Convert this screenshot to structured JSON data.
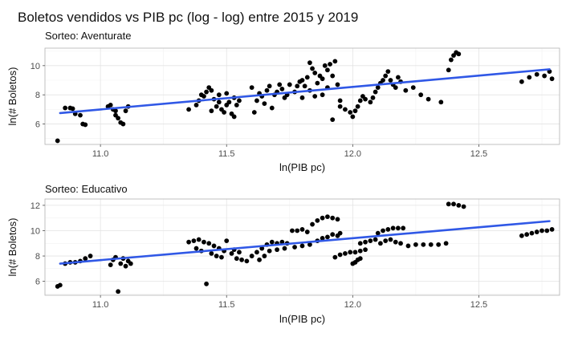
{
  "chart_title": "Boletos vendidos vs PIB pc (log - log) entre 2015 y 2019",
  "colors": {
    "points": "#000000",
    "trend": "#3058e6",
    "grid": "#e3e3e3",
    "border": "#b3b3b3"
  },
  "chart_data": [
    {
      "type": "scatter",
      "subtitle": "Sorteo: Aventurate",
      "xlabel": "ln(PIB pc)",
      "ylabel": "ln(# Boletos)",
      "xlim": [
        10.78,
        12.82
      ],
      "ylim": [
        4.6,
        11.2
      ],
      "xticks": [
        11.0,
        11.5,
        12.0,
        12.5
      ],
      "xtick_labels": [
        "11.0",
        "11.5",
        "12.0",
        "12.5"
      ],
      "yticks": [
        6,
        8,
        10
      ],
      "ytick_labels": [
        "6",
        "8",
        "10"
      ],
      "grid": true,
      "trend_line": {
        "x": [
          10.84,
          12.78
        ],
        "y": [
          6.75,
          9.75
        ]
      },
      "points": [
        [
          10.83,
          4.85
        ],
        [
          10.86,
          7.1
        ],
        [
          10.88,
          7.1
        ],
        [
          10.89,
          7.05
        ],
        [
          10.9,
          6.7
        ],
        [
          10.92,
          6.6
        ],
        [
          10.93,
          6.0
        ],
        [
          10.94,
          5.95
        ],
        [
          11.03,
          7.2
        ],
        [
          11.04,
          7.3
        ],
        [
          11.05,
          7.0
        ],
        [
          11.06,
          6.9
        ],
        [
          11.06,
          6.6
        ],
        [
          11.07,
          6.4
        ],
        [
          11.08,
          6.1
        ],
        [
          11.09,
          6.0
        ],
        [
          11.1,
          6.9
        ],
        [
          11.11,
          7.2
        ],
        [
          11.35,
          7.0
        ],
        [
          11.38,
          7.3
        ],
        [
          11.39,
          7.6
        ],
        [
          11.4,
          8.0
        ],
        [
          11.41,
          7.9
        ],
        [
          11.42,
          8.2
        ],
        [
          11.43,
          8.5
        ],
        [
          11.44,
          8.3
        ],
        [
          11.45,
          7.7
        ],
        [
          11.46,
          7.2
        ],
        [
          11.47,
          8.0
        ],
        [
          11.48,
          7.0
        ],
        [
          11.49,
          6.8
        ],
        [
          11.5,
          8.1
        ],
        [
          11.51,
          7.5
        ],
        [
          11.52,
          6.7
        ],
        [
          11.53,
          7.8
        ],
        [
          11.54,
          7.3
        ],
        [
          11.55,
          7.6
        ],
        [
          11.44,
          6.9
        ],
        [
          11.47,
          7.5
        ],
        [
          11.5,
          7.3
        ],
        [
          11.53,
          6.5
        ],
        [
          11.6,
          8.5
        ],
        [
          11.61,
          6.8
        ],
        [
          11.62,
          7.6
        ],
        [
          11.63,
          8.1
        ],
        [
          11.64,
          7.9
        ],
        [
          11.65,
          7.4
        ],
        [
          11.66,
          8.3
        ],
        [
          11.67,
          8.6
        ],
        [
          11.68,
          7.1
        ],
        [
          11.69,
          8.0
        ],
        [
          11.7,
          8.2
        ],
        [
          11.71,
          8.7
        ],
        [
          11.72,
          8.4
        ],
        [
          11.73,
          7.8
        ],
        [
          11.74,
          8.0
        ],
        [
          11.75,
          8.7
        ],
        [
          11.77,
          8.2
        ],
        [
          11.78,
          8.6
        ],
        [
          11.79,
          8.9
        ],
        [
          11.8,
          9.0
        ],
        [
          11.81,
          8.6
        ],
        [
          11.82,
          9.2
        ],
        [
          11.83,
          10.2
        ],
        [
          11.84,
          9.8
        ],
        [
          11.85,
          9.5
        ],
        [
          11.86,
          8.8
        ],
        [
          11.87,
          9.3
        ],
        [
          11.88,
          9.1
        ],
        [
          11.89,
          10.0
        ],
        [
          11.9,
          9.7
        ],
        [
          11.91,
          10.1
        ],
        [
          11.92,
          9.3
        ],
        [
          11.93,
          10.3
        ],
        [
          11.94,
          8.7
        ],
        [
          11.8,
          7.8
        ],
        [
          11.83,
          8.3
        ],
        [
          11.85,
          7.9
        ],
        [
          11.88,
          8.0
        ],
        [
          11.9,
          8.5
        ],
        [
          11.92,
          6.3
        ],
        [
          11.95,
          7.2
        ],
        [
          11.95,
          7.6
        ],
        [
          11.97,
          7.0
        ],
        [
          11.99,
          6.8
        ],
        [
          12.0,
          6.5
        ],
        [
          12.01,
          6.9
        ],
        [
          12.02,
          7.2
        ],
        [
          12.03,
          7.6
        ],
        [
          12.04,
          7.9
        ],
        [
          12.05,
          7.7
        ],
        [
          12.07,
          7.5
        ],
        [
          12.08,
          7.8
        ],
        [
          12.09,
          8.2
        ],
        [
          12.1,
          8.5
        ],
        [
          12.11,
          8.8
        ],
        [
          12.12,
          9.0
        ],
        [
          12.13,
          9.3
        ],
        [
          12.14,
          9.6
        ],
        [
          12.15,
          9.0
        ],
        [
          12.16,
          8.7
        ],
        [
          12.17,
          8.5
        ],
        [
          12.18,
          9.2
        ],
        [
          12.19,
          8.9
        ],
        [
          12.21,
          8.3
        ],
        [
          12.24,
          8.5
        ],
        [
          12.27,
          8.0
        ],
        [
          12.3,
          7.7
        ],
        [
          12.35,
          7.5
        ],
        [
          12.38,
          9.7
        ],
        [
          12.39,
          10.4
        ],
        [
          12.4,
          10.7
        ],
        [
          12.41,
          10.9
        ],
        [
          12.42,
          10.8
        ],
        [
          12.67,
          8.9
        ],
        [
          12.7,
          9.2
        ],
        [
          12.73,
          9.4
        ],
        [
          12.76,
          9.3
        ],
        [
          12.78,
          9.6
        ],
        [
          12.79,
          9.1
        ]
      ]
    },
    {
      "type": "scatter",
      "subtitle": "Sorteo: Educativo",
      "xlabel": "ln(PIB pc)",
      "ylabel": "ln(# Boletos)",
      "xlim": [
        10.78,
        12.82
      ],
      "ylim": [
        4.9,
        12.5
      ],
      "xticks": [
        11.0,
        11.5,
        12.0,
        12.5
      ],
      "xtick_labels": [
        "11.0",
        "11.5",
        "12.0",
        "12.5"
      ],
      "yticks": [
        6,
        8,
        10,
        12
      ],
      "ytick_labels": [
        "6",
        "8",
        "10",
        "12"
      ],
      "grid": true,
      "trend_line": {
        "x": [
          10.84,
          12.78
        ],
        "y": [
          7.4,
          10.75
        ]
      },
      "points": [
        [
          10.83,
          5.6
        ],
        [
          10.84,
          5.7
        ],
        [
          10.86,
          7.4
        ],
        [
          10.88,
          7.5
        ],
        [
          10.9,
          7.5
        ],
        [
          10.92,
          7.6
        ],
        [
          10.94,
          7.8
        ],
        [
          10.96,
          8.0
        ],
        [
          11.04,
          7.3
        ],
        [
          11.05,
          7.7
        ],
        [
          11.06,
          7.9
        ],
        [
          11.07,
          5.2
        ],
        [
          11.08,
          7.4
        ],
        [
          11.09,
          7.8
        ],
        [
          11.1,
          7.2
        ],
        [
          11.11,
          7.6
        ],
        [
          11.12,
          7.4
        ],
        [
          11.35,
          9.1
        ],
        [
          11.37,
          9.2
        ],
        [
          11.39,
          9.3
        ],
        [
          11.41,
          9.1
        ],
        [
          11.43,
          9.0
        ],
        [
          11.45,
          8.8
        ],
        [
          11.47,
          8.6
        ],
        [
          11.49,
          8.4
        ],
        [
          11.38,
          8.6
        ],
        [
          11.4,
          8.4
        ],
        [
          11.42,
          5.8
        ],
        [
          11.44,
          8.2
        ],
        [
          11.46,
          8.0
        ],
        [
          11.48,
          7.9
        ],
        [
          11.5,
          9.2
        ],
        [
          11.52,
          8.2
        ],
        [
          11.54,
          7.8
        ],
        [
          11.56,
          7.7
        ],
        [
          11.58,
          7.6
        ],
        [
          11.53,
          8.5
        ],
        [
          11.55,
          8.3
        ],
        [
          11.6,
          8.0
        ],
        [
          11.62,
          8.3
        ],
        [
          11.64,
          8.6
        ],
        [
          11.66,
          8.9
        ],
        [
          11.68,
          9.1
        ],
        [
          11.7,
          9.0
        ],
        [
          11.72,
          9.1
        ],
        [
          11.74,
          9.0
        ],
        [
          11.63,
          7.7
        ],
        [
          11.65,
          8.0
        ],
        [
          11.67,
          8.4
        ],
        [
          11.7,
          8.5
        ],
        [
          11.73,
          8.6
        ],
        [
          11.76,
          10.0
        ],
        [
          11.78,
          10.0
        ],
        [
          11.8,
          10.1
        ],
        [
          11.82,
          9.9
        ],
        [
          11.77,
          8.7
        ],
        [
          11.8,
          8.8
        ],
        [
          11.83,
          8.9
        ],
        [
          11.84,
          10.5
        ],
        [
          11.86,
          10.8
        ],
        [
          11.88,
          11.0
        ],
        [
          11.9,
          11.1
        ],
        [
          11.92,
          11.0
        ],
        [
          11.94,
          10.9
        ],
        [
          11.86,
          9.2
        ],
        [
          11.88,
          9.4
        ],
        [
          11.9,
          9.5
        ],
        [
          11.92,
          9.7
        ],
        [
          11.94,
          9.6
        ],
        [
          11.95,
          9.8
        ],
        [
          11.93,
          7.9
        ],
        [
          11.95,
          8.1
        ],
        [
          11.97,
          8.2
        ],
        [
          11.99,
          8.3
        ],
        [
          12.01,
          8.3
        ],
        [
          12.03,
          8.4
        ],
        [
          12.05,
          8.5
        ],
        [
          12.0,
          7.4
        ],
        [
          12.01,
          7.5
        ],
        [
          12.02,
          7.7
        ],
        [
          12.03,
          7.8
        ],
        [
          12.03,
          9.0
        ],
        [
          12.05,
          9.1
        ],
        [
          12.07,
          9.2
        ],
        [
          12.09,
          9.3
        ],
        [
          12.11,
          9.0
        ],
        [
          12.13,
          9.2
        ],
        [
          12.15,
          9.3
        ],
        [
          12.17,
          9.1
        ],
        [
          12.19,
          9.0
        ],
        [
          12.1,
          9.8
        ],
        [
          12.12,
          10.0
        ],
        [
          12.14,
          10.1
        ],
        [
          12.16,
          10.2
        ],
        [
          12.18,
          10.2
        ],
        [
          12.2,
          10.2
        ],
        [
          12.22,
          8.8
        ],
        [
          12.25,
          8.9
        ],
        [
          12.28,
          8.9
        ],
        [
          12.31,
          8.9
        ],
        [
          12.34,
          8.9
        ],
        [
          12.37,
          9.0
        ],
        [
          12.38,
          12.1
        ],
        [
          12.4,
          12.1
        ],
        [
          12.42,
          12.0
        ],
        [
          12.44,
          11.9
        ],
        [
          12.67,
          9.6
        ],
        [
          12.69,
          9.7
        ],
        [
          12.71,
          9.8
        ],
        [
          12.73,
          9.9
        ],
        [
          12.75,
          10.0
        ],
        [
          12.77,
          10.0
        ],
        [
          12.79,
          10.1
        ]
      ]
    }
  ]
}
